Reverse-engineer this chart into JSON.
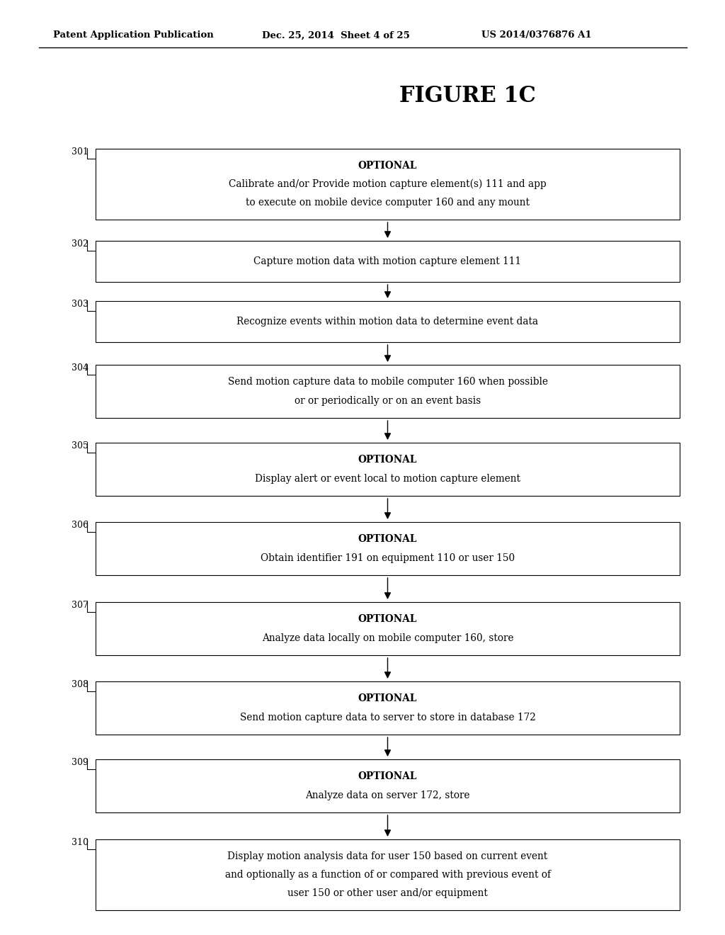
{
  "title": "FIGURE 1C",
  "header_left": "Patent Application Publication",
  "header_mid": "Dec. 25, 2014  Sheet 4 of 25",
  "header_right": "US 2014/0376876 A1",
  "background_color": "#ffffff",
  "boxes": [
    {
      "label": "301",
      "lines": [
        "OPTIONAL",
        "Calibrate and/or Provide motion capture element(s) 111 and app",
        "to execute on mobile device computer 160 and any mount"
      ],
      "bold_line": 0
    },
    {
      "label": "302",
      "lines": [
        "Capture motion data with motion capture element 111"
      ],
      "bold_line": -1
    },
    {
      "label": "303",
      "lines": [
        "Recognize events within motion data to determine event data"
      ],
      "bold_line": -1
    },
    {
      "label": "304",
      "lines": [
        "Send motion capture data to mobile computer 160 when possible",
        "or or periodically or on an event basis"
      ],
      "bold_line": -1
    },
    {
      "label": "305",
      "lines": [
        "OPTIONAL",
        "Display alert or event local to motion capture element"
      ],
      "bold_line": 0
    },
    {
      "label": "306",
      "lines": [
        "OPTIONAL",
        "Obtain identifier 191 on equipment 110 or user 150"
      ],
      "bold_line": 0
    },
    {
      "label": "307",
      "lines": [
        "OPTIONAL",
        "Analyze data locally on mobile computer 160, store"
      ],
      "bold_line": 0
    },
    {
      "label": "308",
      "lines": [
        "OPTIONAL",
        "Send motion capture data to server to store in database 172"
      ],
      "bold_line": 0
    },
    {
      "label": "309",
      "lines": [
        "OPTIONAL",
        "Analyze data on server 172, store"
      ],
      "bold_line": 0
    },
    {
      "label": "310",
      "lines": [
        "Display motion analysis data for user 150 based on current event",
        "and optionally as a function of or compared with previous event of",
        "user 150 or other user and/or equipment"
      ],
      "bold_line": -1
    }
  ]
}
